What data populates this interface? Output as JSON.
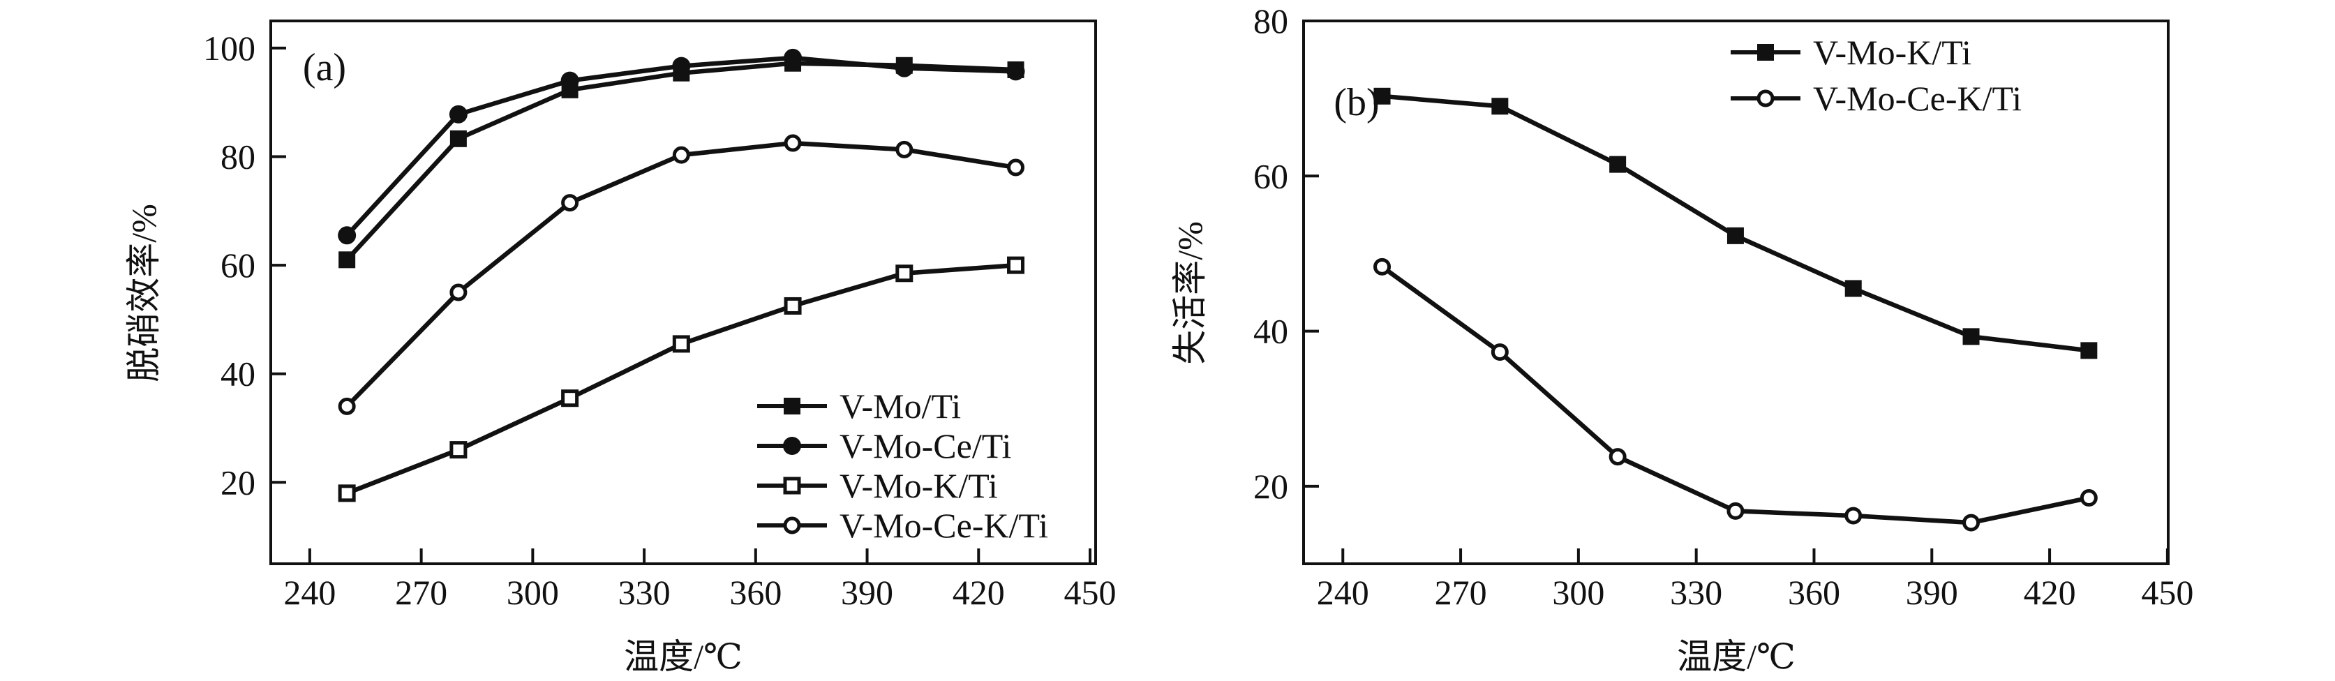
{
  "figure": {
    "background": "#ffffff",
    "ink": "#111111"
  },
  "chart_data": [
    {
      "id": "a",
      "type": "line",
      "panel_label": "(a)",
      "title": "",
      "xlabel": "温度/℃",
      "ylabel": "脱硝效率/%",
      "x": [
        250,
        280,
        310,
        340,
        370,
        400,
        430
      ],
      "xticks": [
        240,
        270,
        300,
        330,
        360,
        390,
        420,
        450
      ],
      "yticks": [
        20,
        40,
        60,
        80,
        100
      ],
      "xlim": [
        229.5,
        451.5
      ],
      "ylim": [
        5,
        105
      ],
      "grid": false,
      "legend_position": "inside-lower-right",
      "series": [
        {
          "name": "V-Mo/Ti",
          "marker": "filled-square",
          "values": [
            61,
            83.3,
            92.3,
            95.4,
            97.2,
            96.8,
            96
          ]
        },
        {
          "name": "V-Mo-Ce/Ti",
          "marker": "filled-circle",
          "values": [
            65.5,
            87.8,
            94,
            96.7,
            98.2,
            96.3,
            95.7
          ]
        },
        {
          "name": "V-Mo-K/Ti",
          "marker": "open-square",
          "values": [
            18,
            26,
            35.5,
            45.5,
            52.5,
            58.5,
            60
          ]
        },
        {
          "name": "V-Mo-Ce-K/Ti",
          "marker": "open-circle",
          "values": [
            34,
            55,
            71.5,
            80.3,
            82.5,
            81.3,
            78
          ]
        }
      ]
    },
    {
      "id": "b",
      "type": "line",
      "panel_label": "(b)",
      "title": "",
      "xlabel": "温度/℃",
      "ylabel": "失活率/%",
      "x": [
        250,
        280,
        310,
        340,
        370,
        400,
        430
      ],
      "xticks": [
        240,
        270,
        300,
        330,
        360,
        390,
        420,
        450
      ],
      "yticks": [
        20,
        40,
        60,
        80
      ],
      "xlim": [
        230,
        450.2
      ],
      "ylim": [
        10,
        80
      ],
      "grid": false,
      "legend_position": "inside-upper-right",
      "series": [
        {
          "name": "V-Mo-K/Ti",
          "marker": "filled-square",
          "values": [
            70.3,
            69,
            61.5,
            52.3,
            45.5,
            39.3,
            37.5
          ]
        },
        {
          "name": "V-Mo-Ce-K/Ti",
          "marker": "open-circle",
          "values": [
            48.3,
            37.3,
            23.8,
            16.8,
            16.2,
            15.3,
            18.5
          ]
        }
      ]
    }
  ]
}
